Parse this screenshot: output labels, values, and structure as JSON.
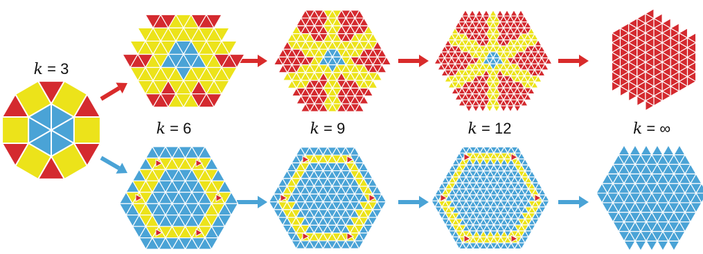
{
  "colors": {
    "red": "#d42a2f",
    "yellow": "#ece31a",
    "blue": "#4aa3d6",
    "arrow_red": "#d92b2b",
    "arrow_blue": "#4aa3d6",
    "edge": "#ffffff"
  },
  "labels": {
    "k": "k",
    "k3": "3",
    "k6": "6",
    "k9": "9",
    "k12": "12",
    "kinf": "∞"
  },
  "diagram": {
    "upper_row": [
      {
        "k": "6",
        "center_tile": "blue",
        "petal_tile": "red",
        "strip_tile": "yellow"
      },
      {
        "k": "9",
        "center_tile": "blue",
        "petal_tile": "red",
        "strip_tile": "yellow"
      },
      {
        "k": "12",
        "center_tile": "blue",
        "petal_tile": "red",
        "strip_tile": "yellow"
      },
      {
        "k": "∞",
        "tile": "red"
      }
    ],
    "lower_row": [
      {
        "k": "6",
        "face_tile": "blue",
        "ring_tile": "yellow",
        "corner_tile": "red"
      },
      {
        "k": "9",
        "face_tile": "blue",
        "ring_tile": "yellow",
        "corner_tile": "red"
      },
      {
        "k": "12",
        "face_tile": "blue",
        "ring_tile": "yellow",
        "corner_tile": "red"
      },
      {
        "k": "∞",
        "tile": "blue"
      }
    ]
  }
}
